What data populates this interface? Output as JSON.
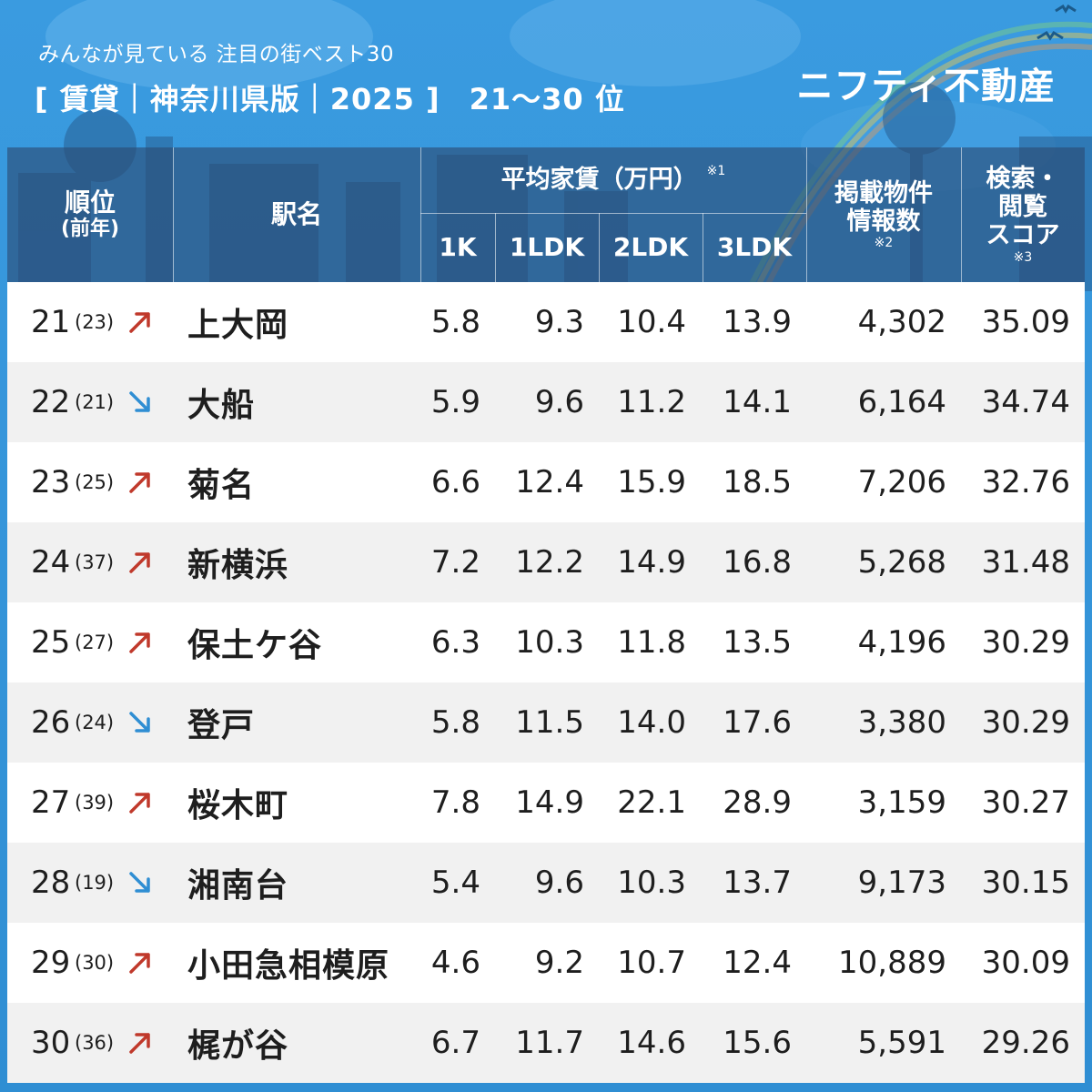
{
  "header": {
    "subtitle": "みんなが見ている 注目の街ベスト30",
    "title": "[ 賃貸｜神奈川県版｜2025 ]",
    "rank_range": "21～30 位",
    "brand": "ニフティ不動産"
  },
  "table": {
    "headers": {
      "rank": "順位",
      "rank_sub": "(前年)",
      "station": "駅名",
      "rent_group": "平均家賃（万円）",
      "rent_group_note": "※1",
      "rent_1k": "1K",
      "rent_1ldk": "1LDK",
      "rent_2ldk": "2LDK",
      "rent_3ldk": "3LDK",
      "listings_line1": "掲載物件",
      "listings_line2": "情報数",
      "listings_note": "※2",
      "score_line1": "検索・",
      "score_line2": "閲覧",
      "score_line3": "スコア",
      "score_note": "※3"
    },
    "rows": [
      {
        "rank": "21",
        "prev": "(23)",
        "trend": "up",
        "station": "上大岡",
        "r1k": "5.8",
        "r1ldk": "9.3",
        "r2ldk": "10.4",
        "r3ldk": "13.9",
        "listings": "4,302",
        "score": "35.09"
      },
      {
        "rank": "22",
        "prev": "(21)",
        "trend": "down",
        "station": "大船",
        "r1k": "5.9",
        "r1ldk": "9.6",
        "r2ldk": "11.2",
        "r3ldk": "14.1",
        "listings": "6,164",
        "score": "34.74"
      },
      {
        "rank": "23",
        "prev": "(25)",
        "trend": "up",
        "station": "菊名",
        "r1k": "6.6",
        "r1ldk": "12.4",
        "r2ldk": "15.9",
        "r3ldk": "18.5",
        "listings": "7,206",
        "score": "32.76"
      },
      {
        "rank": "24",
        "prev": "(37)",
        "trend": "up",
        "station": "新横浜",
        "r1k": "7.2",
        "r1ldk": "12.2",
        "r2ldk": "14.9",
        "r3ldk": "16.8",
        "listings": "5,268",
        "score": "31.48"
      },
      {
        "rank": "25",
        "prev": "(27)",
        "trend": "up",
        "station": "保土ケ谷",
        "r1k": "6.3",
        "r1ldk": "10.3",
        "r2ldk": "11.8",
        "r3ldk": "13.5",
        "listings": "4,196",
        "score": "30.29"
      },
      {
        "rank": "26",
        "prev": "(24)",
        "trend": "down",
        "station": "登戸",
        "r1k": "5.8",
        "r1ldk": "11.5",
        "r2ldk": "14.0",
        "r3ldk": "17.6",
        "listings": "3,380",
        "score": "30.29"
      },
      {
        "rank": "27",
        "prev": "(39)",
        "trend": "up",
        "station": "桜木町",
        "r1k": "7.8",
        "r1ldk": "14.9",
        "r2ldk": "22.1",
        "r3ldk": "28.9",
        "listings": "3,159",
        "score": "30.27"
      },
      {
        "rank": "28",
        "prev": "(19)",
        "trend": "down",
        "station": "湘南台",
        "r1k": "5.4",
        "r1ldk": "9.6",
        "r2ldk": "10.3",
        "r3ldk": "13.7",
        "listings": "9,173",
        "score": "30.15"
      },
      {
        "rank": "29",
        "prev": "(30)",
        "trend": "up",
        "station": "小田急相模原",
        "r1k": "4.6",
        "r1ldk": "9.2",
        "r2ldk": "10.7",
        "r3ldk": "12.4",
        "listings": "10,889",
        "score": "30.09"
      },
      {
        "rank": "30",
        "prev": "(36)",
        "trend": "up",
        "station": "梶が谷",
        "r1k": "6.7",
        "r1ldk": "11.7",
        "r2ldk": "14.6",
        "r3ldk": "15.6",
        "listings": "5,591",
        "score": "29.26"
      }
    ]
  },
  "colors": {
    "background": "#2f8ed3",
    "header_band": "#2c4a72",
    "trend_up": "#c0392b",
    "trend_down": "#2f8ed3"
  },
  "icons": {
    "trend_up": "arrow-up-right-icon",
    "trend_down": "arrow-down-right-icon"
  }
}
